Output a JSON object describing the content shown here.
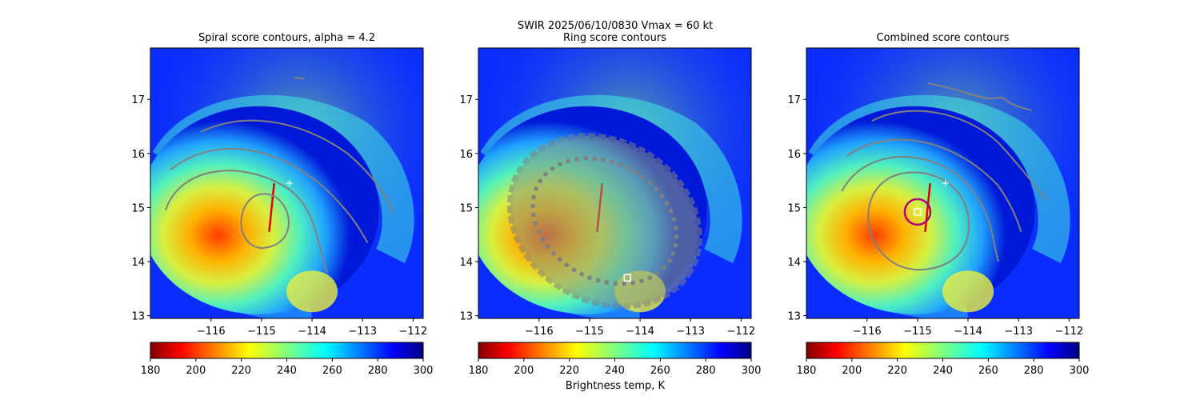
{
  "figure": {
    "suptitle_line1": "SWIR  2025/06/10/0830    Vmax = 60 kt",
    "colorbar_label": "Brightness temp, K"
  },
  "chart_data": [
    {
      "type": "heatmap",
      "title": "Spiral score contours, alpha =  4.2",
      "x_ticks": [
        -116,
        -115,
        -114,
        -113,
        -112
      ],
      "y_ticks": [
        13,
        14,
        15,
        16,
        17
      ],
      "xlim": [
        -117.2,
        -111.8
      ],
      "ylim": [
        12.95,
        17.95
      ],
      "colorbar": {
        "ticks": [
          180,
          200,
          220,
          240,
          260,
          280,
          300
        ],
        "range": [
          180,
          300
        ],
        "colormap": "jet_r"
      },
      "overlay": {
        "contour_color": "#808080",
        "marker": "+",
        "marker_lonlat": [
          -114.45,
          15.45
        ]
      }
    },
    {
      "type": "heatmap",
      "title": "Ring score contours",
      "x_ticks": [
        -116,
        -115,
        -114,
        -113,
        -112
      ],
      "y_ticks": [
        13,
        14,
        15,
        16,
        17
      ],
      "xlim": [
        -117.2,
        -111.8
      ],
      "ylim": [
        12.95,
        17.95
      ],
      "colorbar": {
        "ticks": [
          180,
          200,
          220,
          240,
          260,
          280,
          300
        ],
        "range": [
          180,
          300
        ],
        "colormap": "jet_r"
      },
      "overlay": {
        "contour_color": "#808080",
        "marker": "square",
        "marker_lonlat": [
          -114.25,
          13.7
        ]
      }
    },
    {
      "type": "heatmap",
      "title": "Combined score contours",
      "x_ticks": [
        -116,
        -115,
        -114,
        -113,
        -112
      ],
      "y_ticks": [
        13,
        14,
        15,
        16,
        17
      ],
      "xlim": [
        -117.2,
        -111.8
      ],
      "ylim": [
        12.95,
        17.95
      ],
      "colorbar": {
        "ticks": [
          180,
          200,
          220,
          240,
          260,
          280,
          300
        ],
        "range": [
          180,
          300
        ],
        "colormap": "jet_r"
      },
      "overlay": {
        "contour_color": "#808080",
        "marker": "square",
        "marker_lonlat": [
          -115.0,
          14.92
        ],
        "ring_color": "#b0007a",
        "plus_lonlat": [
          -114.45,
          15.45
        ]
      }
    }
  ]
}
